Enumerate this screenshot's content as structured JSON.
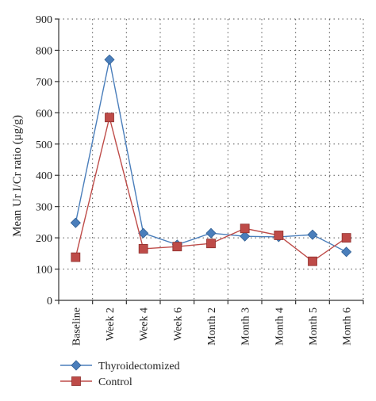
{
  "chart_data": {
    "type": "line",
    "title": "",
    "xlabel": "",
    "ylabel": "Mean Ur I/Cr ratio (μg/g)",
    "ylim": [
      0,
      900
    ],
    "yticks": [
      0,
      100,
      200,
      300,
      400,
      500,
      600,
      700,
      800,
      900
    ],
    "grid": "vertical and horizontal dotted",
    "legend_position": "bottom-left",
    "categories": [
      "Baseline",
      "Week 2",
      "Week 4",
      "Week 6",
      "Month 2",
      "Month 3",
      "Month 4",
      "Month 5",
      "Month 6"
    ],
    "series": [
      {
        "name": "Thyroidectomized",
        "color": "#4a7ebb",
        "marker": "diamond",
        "values": [
          248,
          770,
          215,
          178,
          215,
          205,
          203,
          210,
          155
        ]
      },
      {
        "name": "Control",
        "color": "#be4b48",
        "marker": "square",
        "values": [
          138,
          585,
          165,
          172,
          182,
          230,
          208,
          125,
          200
        ]
      }
    ]
  }
}
